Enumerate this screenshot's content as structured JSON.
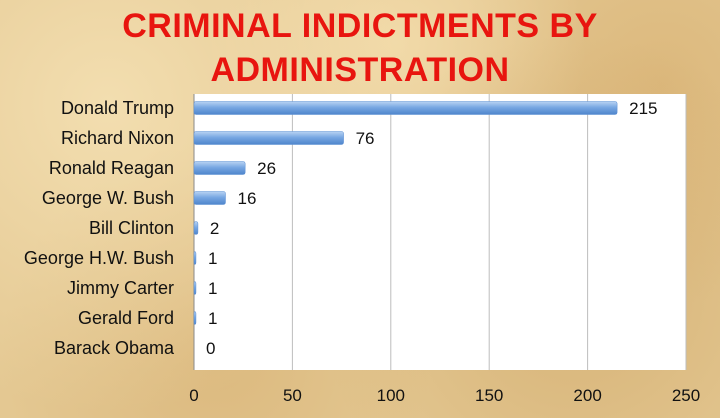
{
  "chart_data": {
    "type": "bar",
    "orientation": "horizontal",
    "title_lines": [
      "CRIMINAL INDICTMENTS BY",
      "ADMINISTRATION"
    ],
    "categories": [
      "Donald Trump",
      "Richard Nixon",
      "Ronald Reagan",
      "George W. Bush",
      "Bill Clinton",
      "George H.W. Bush",
      "Jimmy Carter",
      "Gerald Ford",
      "Barack Obama"
    ],
    "values": [
      215,
      76,
      26,
      16,
      2,
      1,
      1,
      1,
      0
    ],
    "xlim": [
      0,
      250
    ],
    "xticks": [
      0,
      50,
      100,
      150,
      200,
      250
    ],
    "grid": "vertical",
    "legend": "none",
    "bar_color": "#6a9fdf",
    "title_color": "#e8150f"
  }
}
